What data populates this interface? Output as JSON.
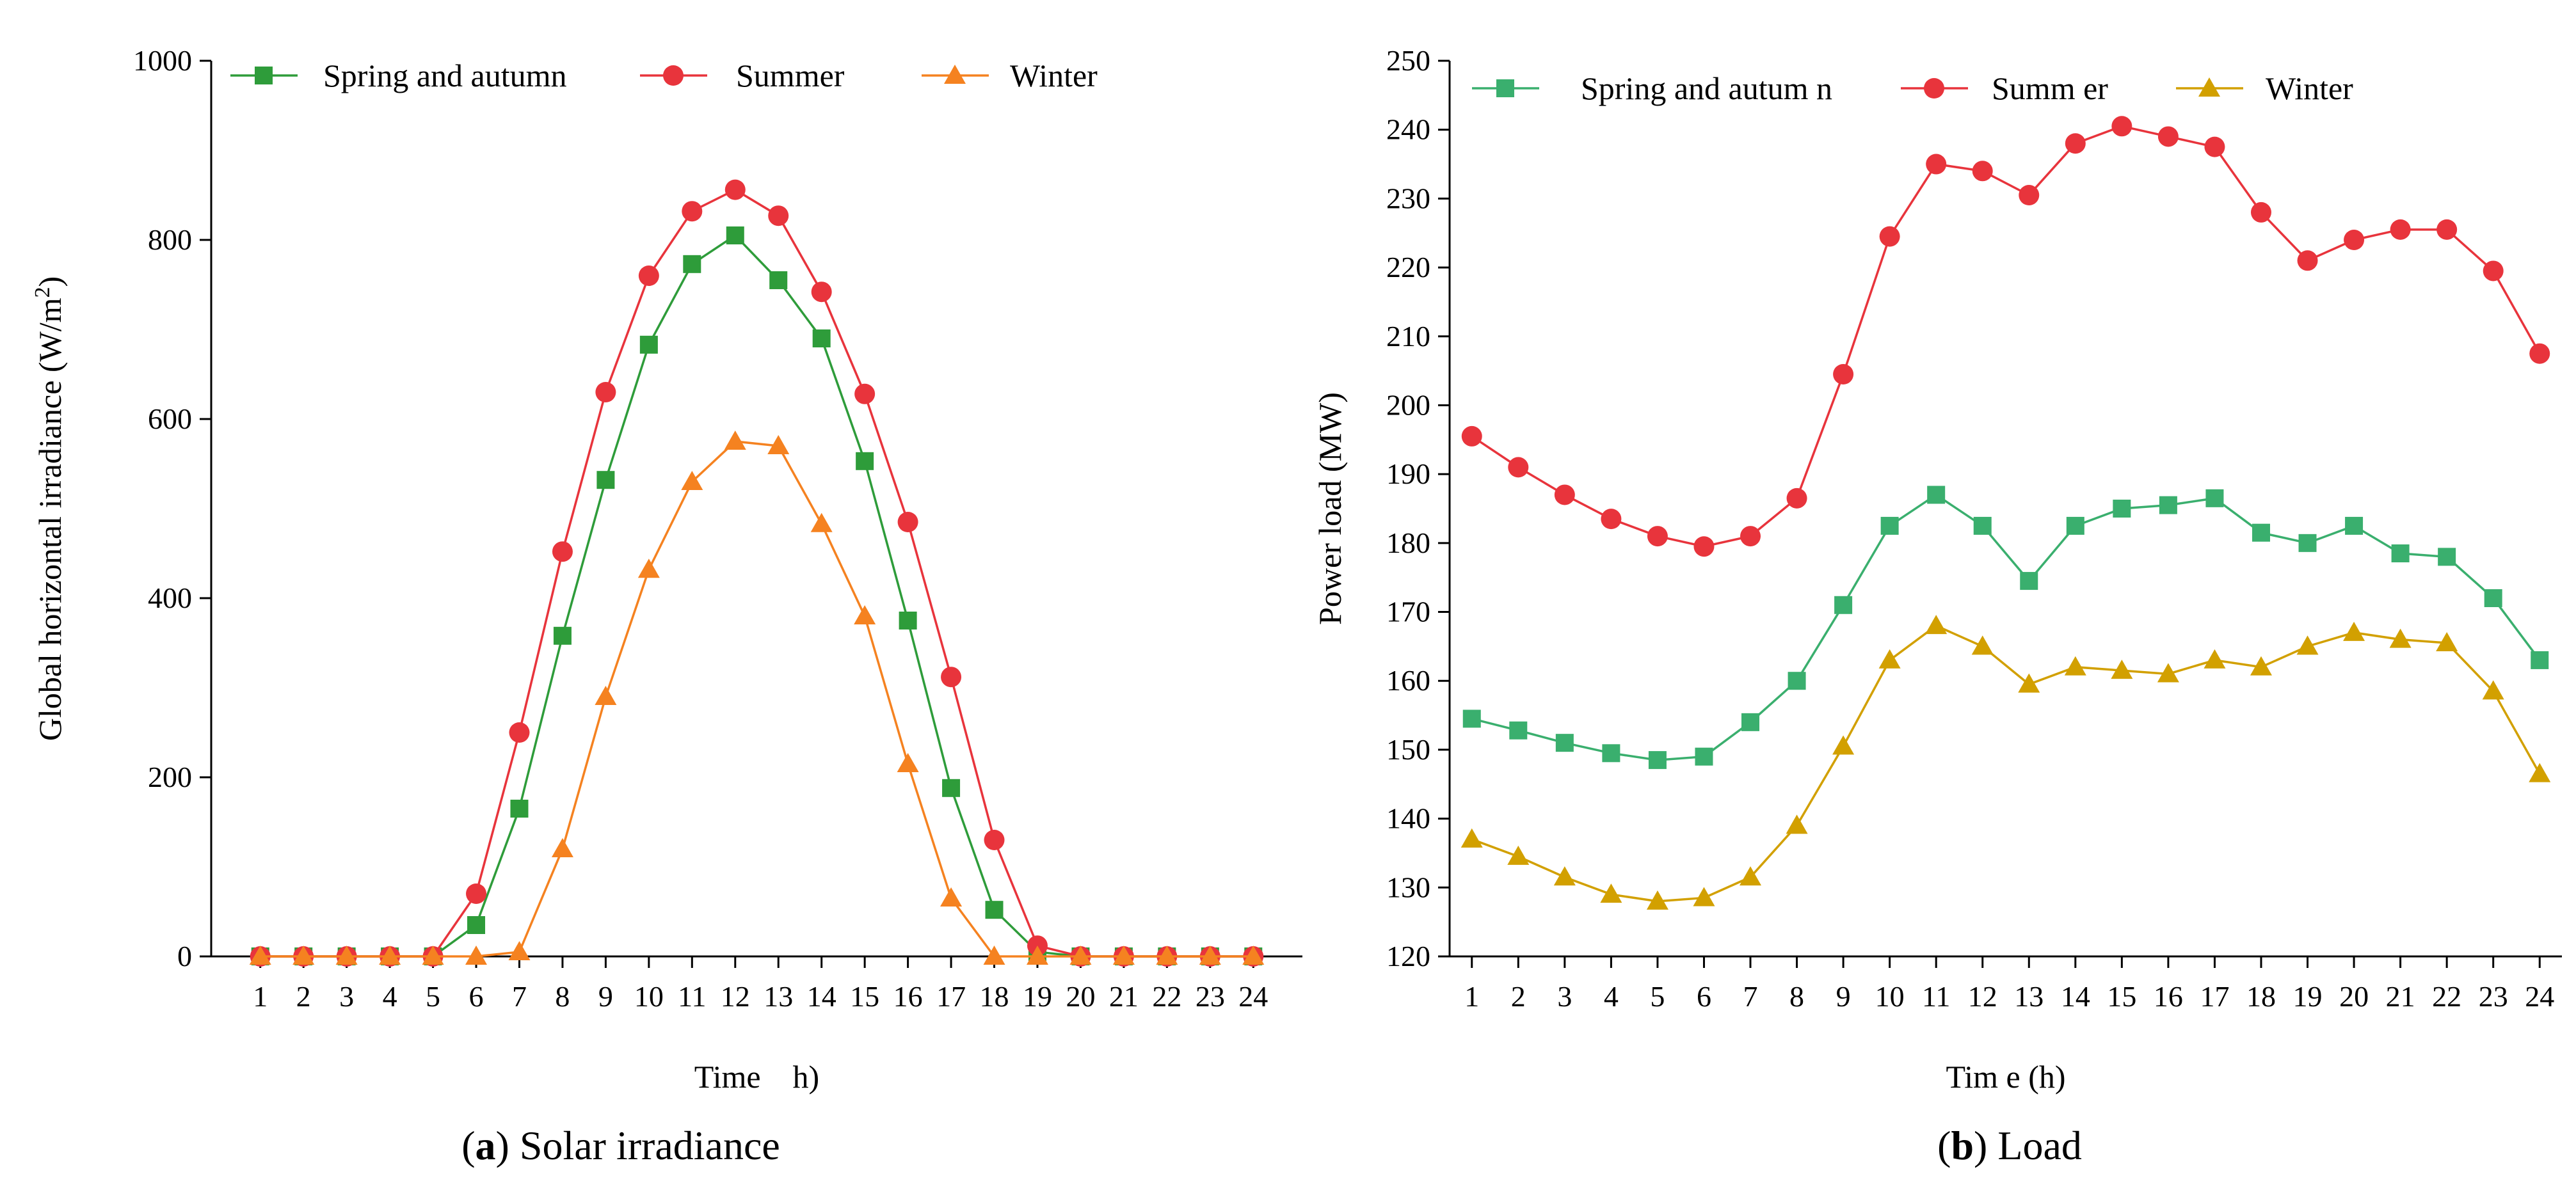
{
  "figure": {
    "captions": [
      {
        "letter": "a",
        "text": ") Solar irradiance"
      },
      {
        "letter": "b",
        "text": ") Load"
      }
    ]
  },
  "colors": {
    "spring_autumn_a": "#2e9c3a",
    "summer": "#e8343c",
    "winter_a": "#f58220",
    "spring_autumn_b": "#3aaf6e",
    "winter_b": "#d2a000"
  },
  "chart_data": [
    {
      "type": "line",
      "panel": "a",
      "title": "",
      "xlabel": "Time　h)",
      "ylabel_main": "Global horizontal irradiance (W/m",
      "ylabel_sup": "2",
      "ylabel_tail": ")",
      "ylim": [
        0,
        1000
      ],
      "yticks": [
        0,
        200,
        400,
        600,
        800,
        1000
      ],
      "x": [
        1,
        2,
        3,
        4,
        5,
        6,
        7,
        8,
        9,
        10,
        11,
        12,
        13,
        14,
        15,
        16,
        17,
        18,
        19,
        20,
        21,
        22,
        23,
        24
      ],
      "legend_position": "top",
      "series": [
        {
          "name": "Spring and autumn",
          "marker": "square",
          "color_key": "spring_autumn_a",
          "values": [
            0,
            0,
            0,
            0,
            0,
            35,
            165,
            358,
            532,
            683,
            773,
            805,
            755,
            690,
            553,
            375,
            188,
            52,
            5,
            0,
            0,
            0,
            0,
            0
          ]
        },
        {
          "name": "Summer",
          "marker": "circle",
          "color_key": "summer",
          "values": [
            0,
            0,
            0,
            0,
            0,
            70,
            250,
            452,
            630,
            760,
            832,
            856,
            827,
            742,
            628,
            485,
            312,
            130,
            12,
            0,
            0,
            0,
            0,
            0
          ]
        },
        {
          "name": "Winter",
          "marker": "triangle",
          "color_key": "winter_a",
          "values": [
            0,
            0,
            0,
            0,
            0,
            0,
            5,
            120,
            290,
            432,
            530,
            575,
            570,
            483,
            380,
            215,
            65,
            0,
            0,
            0,
            0,
            0,
            0,
            0
          ]
        }
      ]
    },
    {
      "type": "line",
      "panel": "b",
      "title": "",
      "xlabel": "Tim e (h)",
      "ylabel": "Power load (MW)",
      "ylim": [
        120,
        250
      ],
      "yticks": [
        120,
        130,
        140,
        150,
        160,
        170,
        180,
        190,
        200,
        210,
        220,
        230,
        240,
        250
      ],
      "x": [
        1,
        2,
        3,
        4,
        5,
        6,
        7,
        8,
        9,
        10,
        11,
        12,
        13,
        14,
        15,
        16,
        17,
        18,
        19,
        20,
        21,
        22,
        23,
        24
      ],
      "legend_position": "top",
      "series": [
        {
          "name": "Spring and autum n",
          "marker": "square",
          "color_key": "spring_autumn_b",
          "values": [
            154.5,
            152.8,
            151,
            149.5,
            148.5,
            149,
            154,
            160,
            171,
            182.5,
            187,
            182.5,
            174.5,
            182.5,
            185,
            185.5,
            186.5,
            181.5,
            180,
            182.5,
            178.5,
            178,
            172,
            163
          ]
        },
        {
          "name": "Summ er",
          "marker": "circle",
          "color_key": "summer",
          "values": [
            195.5,
            191,
            187,
            183.5,
            181,
            179.5,
            181,
            186.5,
            204.5,
            224.5,
            235,
            234,
            230.5,
            238,
            240.5,
            239,
            237.5,
            228,
            221,
            224,
            225.5,
            225.5,
            219.5,
            207.5
          ]
        },
        {
          "name": "Winter",
          "marker": "triangle",
          "color_key": "winter_b",
          "values": [
            137,
            134.5,
            131.5,
            129,
            128,
            128.5,
            131.5,
            139,
            150.5,
            163,
            168,
            165,
            159.5,
            162,
            161.5,
            161,
            163,
            162,
            165,
            167,
            166,
            165.5,
            158.5,
            146.5
          ]
        }
      ]
    }
  ]
}
